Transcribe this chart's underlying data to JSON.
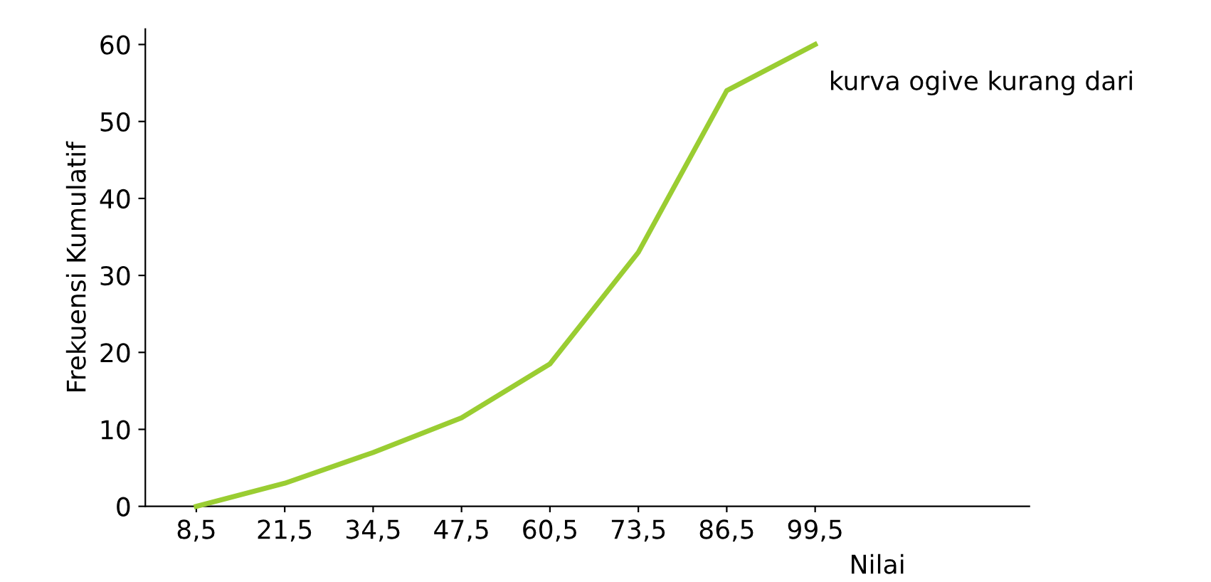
{
  "chart_data": {
    "type": "line",
    "xlabel": "Nilai",
    "ylabel": "Frekuensi Kumulatif",
    "x": [
      8.5,
      21.5,
      34.5,
      47.5,
      60.5,
      73.5,
      86.5,
      99.5
    ],
    "series": [
      {
        "name": "kurva ogive kurang dari",
        "color": "#9acd32",
        "values": [
          0,
          3,
          7,
          11.5,
          18.5,
          33,
          54,
          60
        ]
      }
    ],
    "xlim": [
      1,
      131
    ],
    "xticks": [
      {
        "value": 8.5,
        "label": "8,5"
      },
      {
        "value": 21.5,
        "label": "21,5"
      },
      {
        "value": 34.5,
        "label": "34,5"
      },
      {
        "value": 47.5,
        "label": "47,5"
      },
      {
        "value": 60.5,
        "label": "60,5"
      },
      {
        "value": 73.5,
        "label": "73,5"
      },
      {
        "value": 86.5,
        "label": "86,5"
      },
      {
        "value": 99.5,
        "label": "99,5"
      }
    ],
    "ylim": [
      0,
      62
    ],
    "yticks": [
      0,
      10,
      20,
      30,
      40,
      50,
      60
    ],
    "grid": false,
    "legend": false,
    "marker": "none",
    "line_style": "solid"
  }
}
